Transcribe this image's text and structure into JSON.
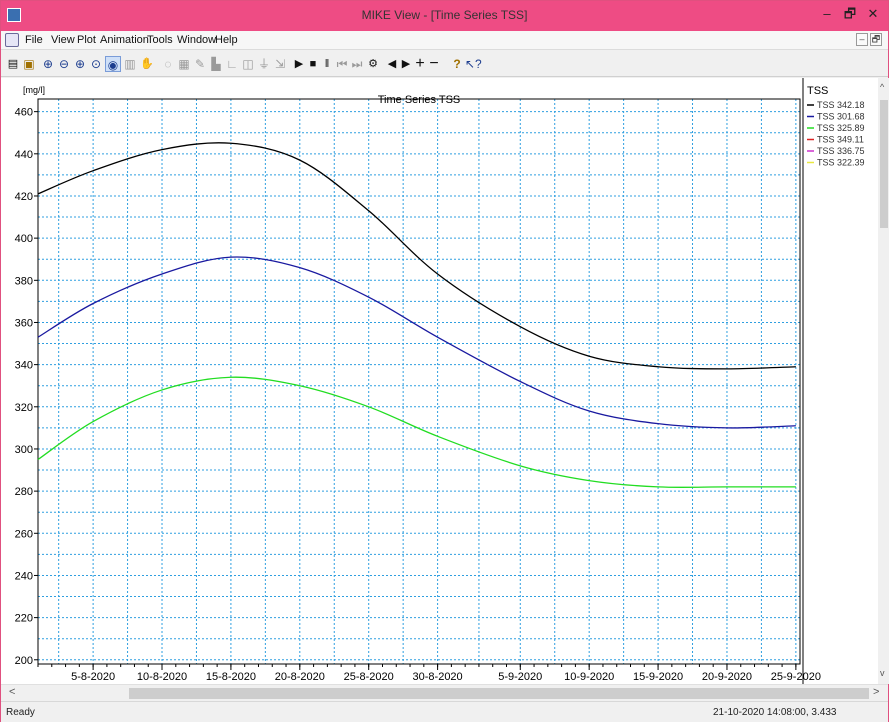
{
  "window": {
    "title": "MIKE View - [Time Series TSS]",
    "minimize_glyph": "–",
    "restore_glyph": "🗗",
    "close_glyph": "✕"
  },
  "menu": {
    "items": [
      "File",
      "View",
      "Plot",
      "Animation",
      "Tools",
      "Window",
      "Help"
    ],
    "mdi_restore": "–",
    "mdi_close": "🗗"
  },
  "toolbar": {
    "icons": [
      "printer-icon",
      "copy-icon",
      "zoom-in-icon",
      "zoom-out-icon",
      "zoom-window-icon",
      "zoom-full-icon",
      "select-icon",
      "properties-icon",
      "pan-icon",
      "play-icon",
      "stop-icon",
      "pause-icon",
      "first-frame-icon",
      "last-frame-icon",
      "frame-settings-icon",
      "step-back-icon",
      "step-forward-icon",
      "add-icon",
      "remove-icon",
      "help-icon",
      "context-help-icon"
    ]
  },
  "chart_data": {
    "type": "line",
    "title": "Time Series  TSS",
    "ylabel": "[mg/l]",
    "ylim": [
      198,
      466
    ],
    "yticks": [
      200,
      220,
      240,
      260,
      280,
      300,
      320,
      340,
      360,
      380,
      400,
      420,
      440,
      460
    ],
    "x_tick_labels": [
      "5-8-2020",
      "10-8-2020",
      "15-8-2020",
      "20-8-2020",
      "25-8-2020",
      "30-8-2020",
      "5-9-2020",
      "10-9-2020",
      "15-9-2020",
      "20-9-2020",
      "25-9-2020"
    ],
    "x_tick_days": [
      5,
      10,
      15,
      20,
      25,
      30,
      36,
      41,
      46,
      51,
      56
    ],
    "xlim_days": [
      1,
      56.3
    ],
    "grid": true,
    "legend_title": "TSS",
    "legend_position": "right",
    "series": [
      {
        "name": "TSS 342.18",
        "color": "#000000",
        "x_days": [
          1,
          5,
          10,
          15,
          20,
          25,
          30,
          36,
          41,
          46,
          51,
          56
        ],
        "values": [
          421,
          432,
          442,
          445,
          437,
          413,
          383,
          358,
          344,
          339,
          338,
          339
        ]
      },
      {
        "name": "TSS 301.68",
        "color": "#1a1aa0",
        "x_days": [
          1,
          5,
          10,
          15,
          20,
          25,
          30,
          36,
          41,
          46,
          51,
          56
        ],
        "values": [
          353,
          369,
          383,
          391,
          386,
          372,
          353,
          332,
          318,
          312,
          310,
          311
        ]
      },
      {
        "name": "TSS 325.89",
        "color": "#22dd22",
        "x_days": [
          1,
          5,
          10,
          15,
          20,
          25,
          30,
          36,
          41,
          46,
          51,
          56
        ],
        "values": [
          295,
          313,
          328,
          334,
          330,
          320,
          306,
          292,
          285,
          282,
          282,
          282
        ]
      },
      {
        "name": "TSS 349.11",
        "color": "#dd2222",
        "x_days": [],
        "values": []
      },
      {
        "name": "TSS 336.75",
        "color": "#cc33cc",
        "x_days": [],
        "values": []
      },
      {
        "name": "TSS 322.39",
        "color": "#e8e840",
        "x_days": [],
        "values": []
      }
    ]
  },
  "status": {
    "left": "Ready",
    "right": "21-10-2020 14:08:00, 3.433"
  }
}
